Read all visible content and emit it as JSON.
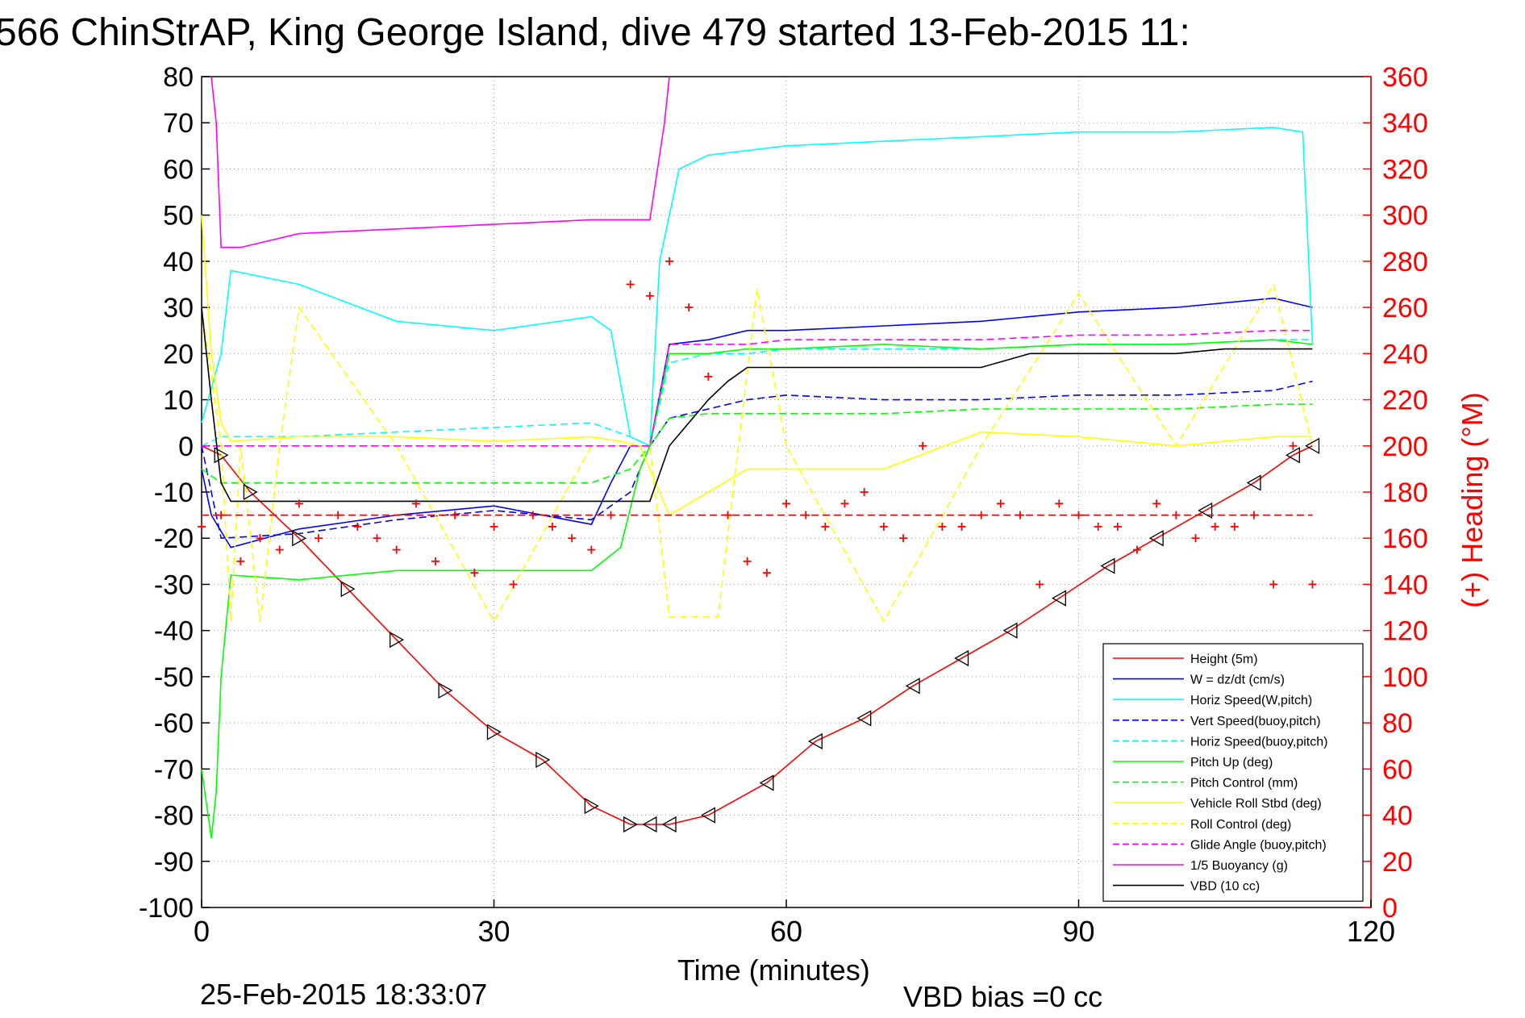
{
  "chart_data": {
    "type": "line",
    "title": "566 ChinStrAP, King George Island, dive 479 started 13-Feb-2015 11:",
    "xlabel": "Time (minutes)",
    "ylabel_right": "(+) Heading (°M)",
    "footer_timestamp": "25-Feb-2015 18:33:07",
    "footer_note": "VBD bias =0 cc",
    "xlim": [
      0,
      120
    ],
    "ylim": [
      -100,
      80
    ],
    "ylim_right": [
      0,
      360
    ],
    "x_ticks": [
      "0",
      "30",
      "60",
      "90",
      "120"
    ],
    "y_ticks_left": [
      "80",
      "70",
      "60",
      "50",
      "40",
      "30",
      "20",
      "10",
      "0",
      "-10",
      "-20",
      "-30",
      "-40",
      "-50",
      "-60",
      "-70",
      "-80",
      "-90",
      "-100"
    ],
    "y_ticks_right": [
      "360",
      "340",
      "320",
      "300",
      "280",
      "260",
      "240",
      "220",
      "200",
      "180",
      "160",
      "140",
      "120",
      "100",
      "80",
      "60",
      "40",
      "20",
      "0"
    ],
    "grid": true,
    "legend_position": "bottom-right",
    "series": [
      {
        "name": "Height (5m)",
        "color": "#ff0000",
        "style": "solid",
        "x": [
          0,
          2,
          5,
          10,
          15,
          20,
          25,
          30,
          35,
          40,
          44,
          46,
          48,
          52,
          58,
          63,
          68,
          73,
          78,
          83,
          88,
          93,
          98,
          103,
          108,
          112,
          114
        ],
        "y": [
          0,
          -2,
          -10,
          -20,
          -31,
          -42,
          -53,
          -62,
          -68,
          -78,
          -82,
          -82,
          -82,
          -80,
          -73,
          -64,
          -59,
          -52,
          -46,
          -40,
          -33,
          -26,
          -20,
          -14,
          -8,
          -2,
          0
        ]
      },
      {
        "name": "W = dz/dt (cm/s)",
        "color": "#0000ff",
        "style": "solid",
        "x": [
          0,
          1,
          3,
          10,
          20,
          30,
          40,
          42,
          44,
          46,
          48,
          52,
          56,
          60,
          70,
          80,
          90,
          100,
          110,
          114
        ],
        "y": [
          -5,
          -15,
          -22,
          -18,
          -15,
          -13,
          -17,
          -8,
          0,
          0,
          22,
          23,
          25,
          25,
          26,
          27,
          29,
          30,
          32,
          30
        ]
      },
      {
        "name": "Horiz Speed(W,pitch)",
        "color": "#00ffff",
        "style": "solid",
        "x": [
          0,
          2,
          3,
          10,
          20,
          30,
          40,
          42,
          44,
          46,
          47,
          49,
          52,
          56,
          60,
          70,
          80,
          90,
          100,
          110,
          113,
          114
        ],
        "y": [
          5,
          20,
          38,
          35,
          27,
          25,
          28,
          25,
          2,
          0,
          40,
          60,
          63,
          64,
          65,
          66,
          67,
          68,
          68,
          69,
          68,
          22
        ]
      },
      {
        "name": "Vert Speed(buoy,pitch)",
        "color": "#0000ff",
        "style": "dashed",
        "x": [
          0,
          2,
          10,
          20,
          30,
          40,
          44,
          46,
          48,
          52,
          56,
          60,
          70,
          80,
          90,
          100,
          110,
          114
        ],
        "y": [
          0,
          -20,
          -19,
          -16,
          -14,
          -16,
          -10,
          0,
          6,
          8,
          10,
          11,
          10,
          10,
          11,
          11,
          12,
          14
        ]
      },
      {
        "name": "Horiz Speed(buoy,pitch)",
        "color": "#00ffff",
        "style": "dashed",
        "x": [
          0,
          2,
          10,
          20,
          30,
          40,
          44,
          46,
          48,
          52,
          56,
          60,
          70,
          80,
          90,
          100,
          110,
          114
        ],
        "y": [
          0,
          2,
          2,
          3,
          4,
          5,
          2,
          0,
          18,
          20,
          20,
          21,
          21,
          21,
          22,
          22,
          23,
          23
        ]
      },
      {
        "name": "Pitch Up (deg)",
        "color": "#00ff00",
        "style": "solid",
        "x": [
          0,
          1,
          1.5,
          2,
          3,
          10,
          20,
          30,
          40,
          43,
          45,
          46,
          48,
          52,
          56,
          60,
          70,
          80,
          90,
          100,
          110,
          114
        ],
        "y": [
          -70,
          -85,
          -75,
          -50,
          -28,
          -29,
          -27,
          -27,
          -27,
          -22,
          -5,
          0,
          20,
          20,
          21,
          21,
          22,
          21,
          22,
          22,
          23,
          22
        ]
      },
      {
        "name": "Pitch Control (mm)",
        "color": "#00ff00",
        "style": "dashed",
        "x": [
          0,
          2,
          10,
          20,
          30,
          40,
          44,
          46,
          48,
          52,
          56,
          60,
          70,
          80,
          90,
          100,
          110,
          114
        ],
        "y": [
          -5,
          -8,
          -8,
          -8,
          -8,
          -8,
          -5,
          0,
          6,
          7,
          7,
          7,
          7,
          8,
          8,
          8,
          9,
          9
        ]
      },
      {
        "name": "Vehicle Roll Stbd (deg)",
        "color": "#ffff00",
        "style": "solid",
        "x": [
          0,
          1,
          2,
          3,
          10,
          20,
          30,
          40,
          43,
          45,
          48,
          52,
          56,
          60,
          70,
          80,
          90,
          100,
          110,
          114
        ],
        "y": [
          50,
          20,
          5,
          1,
          2,
          2,
          1,
          2,
          1,
          0,
          -15,
          -10,
          -5,
          -5,
          -5,
          3,
          2,
          0,
          2,
          2
        ]
      },
      {
        "name": "Roll Control (deg)",
        "color": "#ffff00",
        "style": "dashed",
        "x": [
          0,
          2,
          3,
          4,
          6,
          8,
          10,
          20,
          30,
          40,
          44,
          46,
          48,
          53,
          57,
          60,
          70,
          80,
          90,
          100,
          110,
          114
        ],
        "y": [
          30,
          0,
          -38,
          0,
          -38,
          0,
          30,
          0,
          -38,
          0,
          0,
          0,
          -37,
          -37,
          34,
          0,
          -38,
          0,
          33,
          0,
          35,
          0
        ]
      },
      {
        "name": "Glide Angle (buoy,pitch)",
        "color": "#ff00ff",
        "style": "dashed",
        "x": [
          0,
          2,
          10,
          20,
          30,
          40,
          44,
          46,
          48,
          52,
          56,
          60,
          70,
          80,
          90,
          100,
          110,
          114
        ],
        "y": [
          0,
          0,
          0,
          0,
          0,
          0,
          0,
          0,
          22,
          22,
          22,
          23,
          23,
          23,
          24,
          24,
          25,
          25
        ]
      },
      {
        "name": "1/5 Buoyancy (g)",
        "color": "#ff00ff",
        "style": "solid",
        "x": [
          1,
          1.5,
          2,
          4,
          10,
          20,
          30,
          40,
          44,
          46,
          47.5,
          48
        ],
        "y": [
          80,
          70,
          43,
          43,
          46,
          47,
          48,
          49,
          49,
          49,
          70,
          80
        ]
      },
      {
        "name": "VBD (10 cc)",
        "color": "#000000",
        "style": "solid",
        "x": [
          0,
          1,
          2,
          3,
          10,
          20,
          30,
          40,
          46,
          48,
          52,
          54,
          56,
          58,
          70,
          80,
          85,
          95,
          100,
          105,
          110,
          114
        ],
        "y": [
          30,
          10,
          -8,
          -12,
          -12,
          -12,
          -12,
          -12,
          -12,
          0,
          10,
          14,
          17,
          17,
          17,
          17,
          20,
          20,
          20,
          21,
          21,
          21
        ]
      }
    ],
    "heading_points": {
      "name": "(+) Heading (°M)",
      "color": "#ff0000",
      "marker": "+",
      "x": [
        0,
        2,
        4,
        6,
        8,
        10,
        12,
        14,
        16,
        18,
        20,
        22,
        24,
        26,
        28,
        30,
        32,
        34,
        36,
        38,
        40,
        42,
        44,
        46,
        48,
        50,
        52,
        54,
        56,
        58,
        60,
        62,
        64,
        66,
        68,
        70,
        72,
        74,
        76,
        78,
        80,
        82,
        84,
        86,
        88,
        90,
        92,
        94,
        96,
        98,
        100,
        102,
        104,
        106,
        108,
        110,
        112,
        114
      ],
      "y": [
        165,
        170,
        150,
        160,
        155,
        175,
        160,
        170,
        165,
        160,
        155,
        175,
        150,
        170,
        145,
        165,
        140,
        170,
        165,
        160,
        155,
        170,
        270,
        265,
        280,
        260,
        230,
        170,
        150,
        145,
        175,
        170,
        165,
        175,
        180,
        165,
        160,
        200,
        165,
        165,
        170,
        175,
        170,
        140,
        175,
        170,
        165,
        165,
        155,
        175,
        170,
        160,
        165,
        165,
        170,
        140,
        200,
        140
      ]
    },
    "heading_reference": {
      "name": "",
      "color": "#ff0000",
      "style": "dashed",
      "value": 170
    }
  }
}
